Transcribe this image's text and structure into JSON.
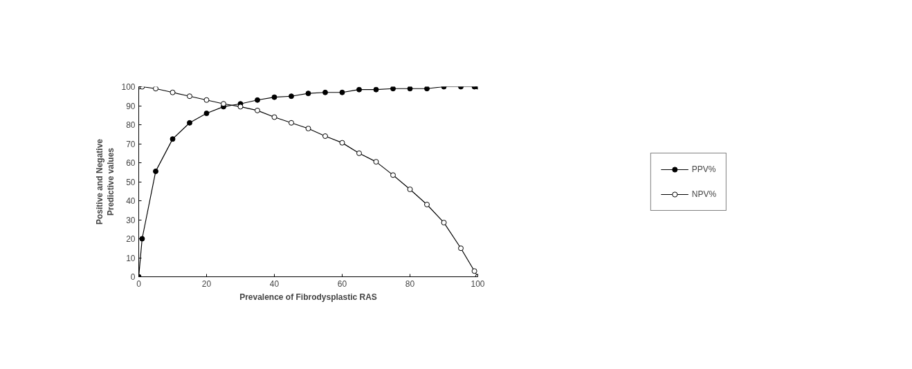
{
  "chart_data": {
    "type": "line",
    "xlabel": "Prevalence of Fibrodysplastic RAS",
    "ylabel": "Positive and Negative\nPredictive values",
    "x": [
      0,
      1,
      5,
      10,
      15,
      20,
      25,
      30,
      35,
      40,
      45,
      50,
      55,
      60,
      65,
      70,
      75,
      80,
      85,
      90,
      95,
      99,
      100
    ],
    "series": [
      {
        "name": "PPV%",
        "color": "#000000",
        "values": [
          0,
          20,
          55.5,
          72.5,
          81,
          86,
          89.5,
          91,
          93,
          94.5,
          95,
          96.5,
          97,
          97,
          98.5,
          98.5,
          99,
          99,
          99,
          100,
          100,
          100,
          100
        ]
      },
      {
        "name": "NPV%",
        "color": "#000000",
        "values": [
          100,
          100,
          99,
          97,
          95,
          93,
          91,
          89.5,
          87.5,
          84,
          81,
          78,
          74,
          70.5,
          65,
          60.5,
          53.5,
          46,
          38,
          28.5,
          15,
          3,
          0
        ]
      }
    ],
    "xlim": [
      0,
      100
    ],
    "ylim": [
      0,
      100
    ],
    "xticks": [
      0,
      20,
      40,
      60,
      80,
      100
    ],
    "yticks": [
      0,
      10,
      20,
      30,
      40,
      50,
      60,
      70,
      80,
      90,
      100
    ],
    "grid": false,
    "legend": "right",
    "marker": "circle",
    "line_style": "solid"
  }
}
